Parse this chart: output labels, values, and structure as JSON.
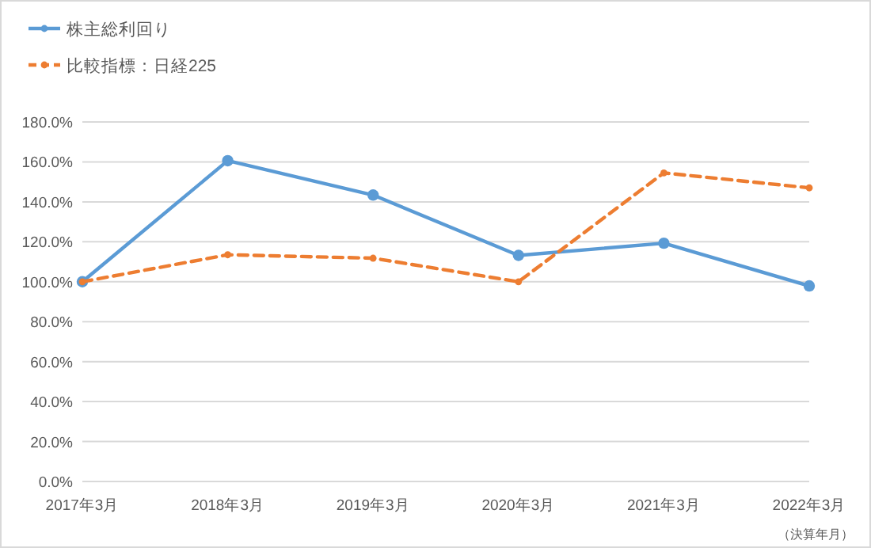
{
  "chart_data": {
    "type": "line",
    "categories": [
      "2017年3月",
      "2018年3月",
      "2019年3月",
      "2020年3月",
      "2021年3月",
      "2022年3月"
    ],
    "series": [
      {
        "name": "株主総利回り",
        "color": "#5b9bd5",
        "values": [
          100,
          160.6,
          143.4,
          113.2,
          119.3,
          97.9
        ],
        "line_style": "solid",
        "marker": "circle"
      },
      {
        "name": "比較指標：日経225",
        "color": "#ed7d31",
        "values": [
          100,
          113.5,
          111.8,
          100,
          154.5,
          147
        ],
        "line_style": "dashed",
        "marker": "circle"
      }
    ],
    "ylim": [
      0,
      180
    ],
    "yticks": [
      {
        "value": 0,
        "label": "0.0%"
      },
      {
        "value": 20,
        "label": "20.0%"
      },
      {
        "value": 40,
        "label": "40.0%"
      },
      {
        "value": 60,
        "label": "60.0%"
      },
      {
        "value": 80,
        "label": "80.0%"
      },
      {
        "value": 100,
        "label": "100.0%"
      },
      {
        "value": 120,
        "label": "120.0%"
      },
      {
        "value": 140,
        "label": "140.0%"
      },
      {
        "value": 160,
        "label": "160.0%"
      },
      {
        "value": 180,
        "label": "180.0%"
      }
    ],
    "grid": "y",
    "legend": "top left",
    "annotations": [
      "（決算年月）"
    ]
  }
}
